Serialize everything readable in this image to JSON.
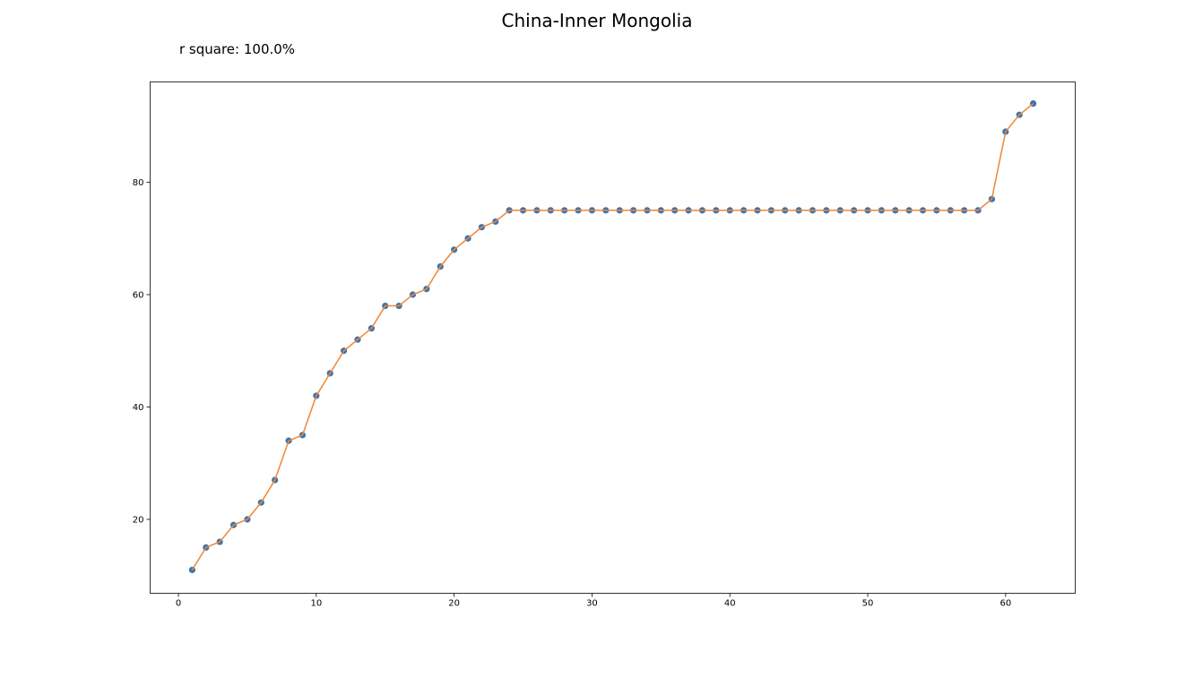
{
  "chart_data": {
    "type": "line",
    "title": "China-Inner Mongolia",
    "annotation": "r square: 100.0%",
    "xlabel": "",
    "ylabel": "",
    "xlim": [
      -2.05,
      65.05
    ],
    "ylim": [
      6.85,
      97.85
    ],
    "xticks": [
      0,
      10,
      20,
      30,
      40,
      50,
      60
    ],
    "yticks": [
      20,
      40,
      60,
      80
    ],
    "grid": false,
    "colors": {
      "points": "#3b75af",
      "line": "#ef8636"
    },
    "x": [
      1,
      2,
      3,
      4,
      5,
      6,
      7,
      8,
      9,
      10,
      11,
      12,
      13,
      14,
      15,
      16,
      17,
      18,
      19,
      20,
      21,
      22,
      23,
      24,
      25,
      26,
      27,
      28,
      29,
      30,
      31,
      32,
      33,
      34,
      35,
      36,
      37,
      38,
      39,
      40,
      41,
      42,
      43,
      44,
      45,
      46,
      47,
      48,
      49,
      50,
      51,
      52,
      53,
      54,
      55,
      56,
      57,
      58,
      59,
      60,
      61,
      62
    ],
    "series": [
      {
        "values": [
          11,
          15,
          16,
          19,
          20,
          23,
          27,
          34,
          35,
          42,
          46,
          50,
          52,
          54,
          58,
          58,
          60,
          61,
          65,
          68,
          70,
          72,
          73,
          75,
          75,
          75,
          75,
          75,
          75,
          75,
          75,
          75,
          75,
          75,
          75,
          75,
          75,
          75,
          75,
          75,
          75,
          75,
          75,
          75,
          75,
          75,
          75,
          75,
          75,
          75,
          75,
          75,
          75,
          75,
          75,
          75,
          75,
          75,
          77,
          89,
          92,
          94
        ]
      }
    ]
  }
}
